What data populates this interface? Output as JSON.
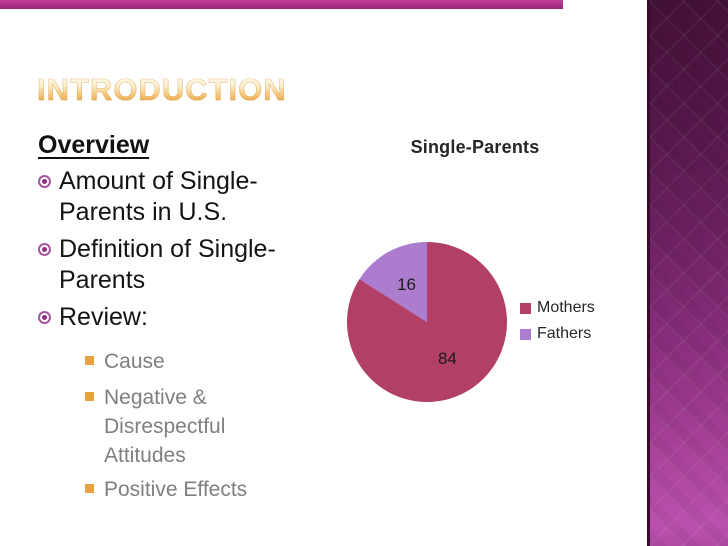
{
  "slide": {
    "title": "INTRODUCTION",
    "overview_heading": "Overview",
    "bullets": [
      "Amount of Single-Parents in U.S.",
      "Definition of Single-Parents",
      "Review:"
    ],
    "sub_bullets": [
      "Cause",
      "Negative & Disrespectful Attitudes",
      "Positive Effects"
    ]
  },
  "chart_data": {
    "type": "pie",
    "title": "Single-Parents",
    "categories": [
      "Mothers",
      "Fathers"
    ],
    "values": [
      84,
      16
    ],
    "colors": [
      "#b23f66",
      "#ac7ccf"
    ],
    "start_angle": "12-oclock",
    "direction": "clockwise",
    "legend_position": "right",
    "data_labels_shown": true
  },
  "theme": {
    "top_accent_bar_color": "#ad2f85",
    "sidebar_gradient_top": "#431037",
    "sidebar_gradient_bottom": "#bb50ae",
    "title_gradient_top": "#fffdf6",
    "title_gradient_bottom": "#efa94e",
    "bullet_marker_color": "#932d86",
    "sub_bullet_marker_color": "#e8a23e",
    "sub_bullet_text_color": "#7f7f7f",
    "body_text_color": "#141414"
  }
}
